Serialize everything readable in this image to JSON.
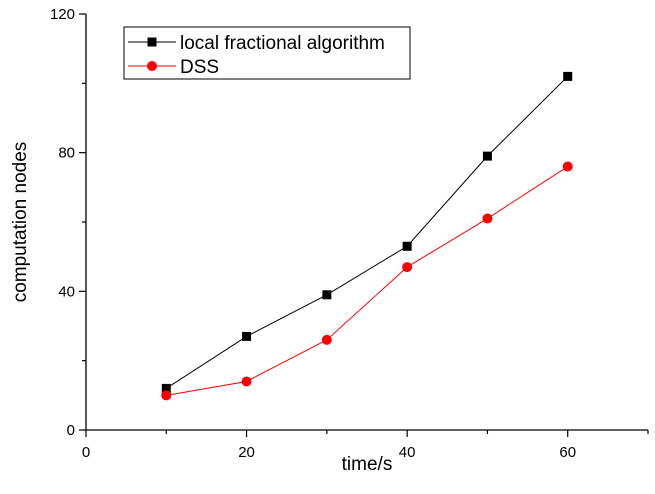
{
  "chart_data": {
    "type": "line",
    "xlabel": "time/s",
    "ylabel": "computation nodes",
    "xlim": [
      0,
      70
    ],
    "ylim": [
      0,
      120
    ],
    "xticks": [
      0,
      20,
      40,
      60
    ],
    "yticks": [
      0,
      40,
      80,
      120
    ],
    "grid": false,
    "legend_position": "top-left",
    "x": [
      10,
      20,
      30,
      40,
      50,
      60
    ],
    "series": [
      {
        "name": "local fractional algorithm",
        "values": [
          12,
          27,
          39,
          53,
          79,
          102
        ],
        "color": "#000000",
        "marker": "square"
      },
      {
        "name": "DSS",
        "values": [
          10,
          14,
          26,
          47,
          61,
          76
        ],
        "color": "#ff0000",
        "marker": "circle"
      }
    ]
  }
}
